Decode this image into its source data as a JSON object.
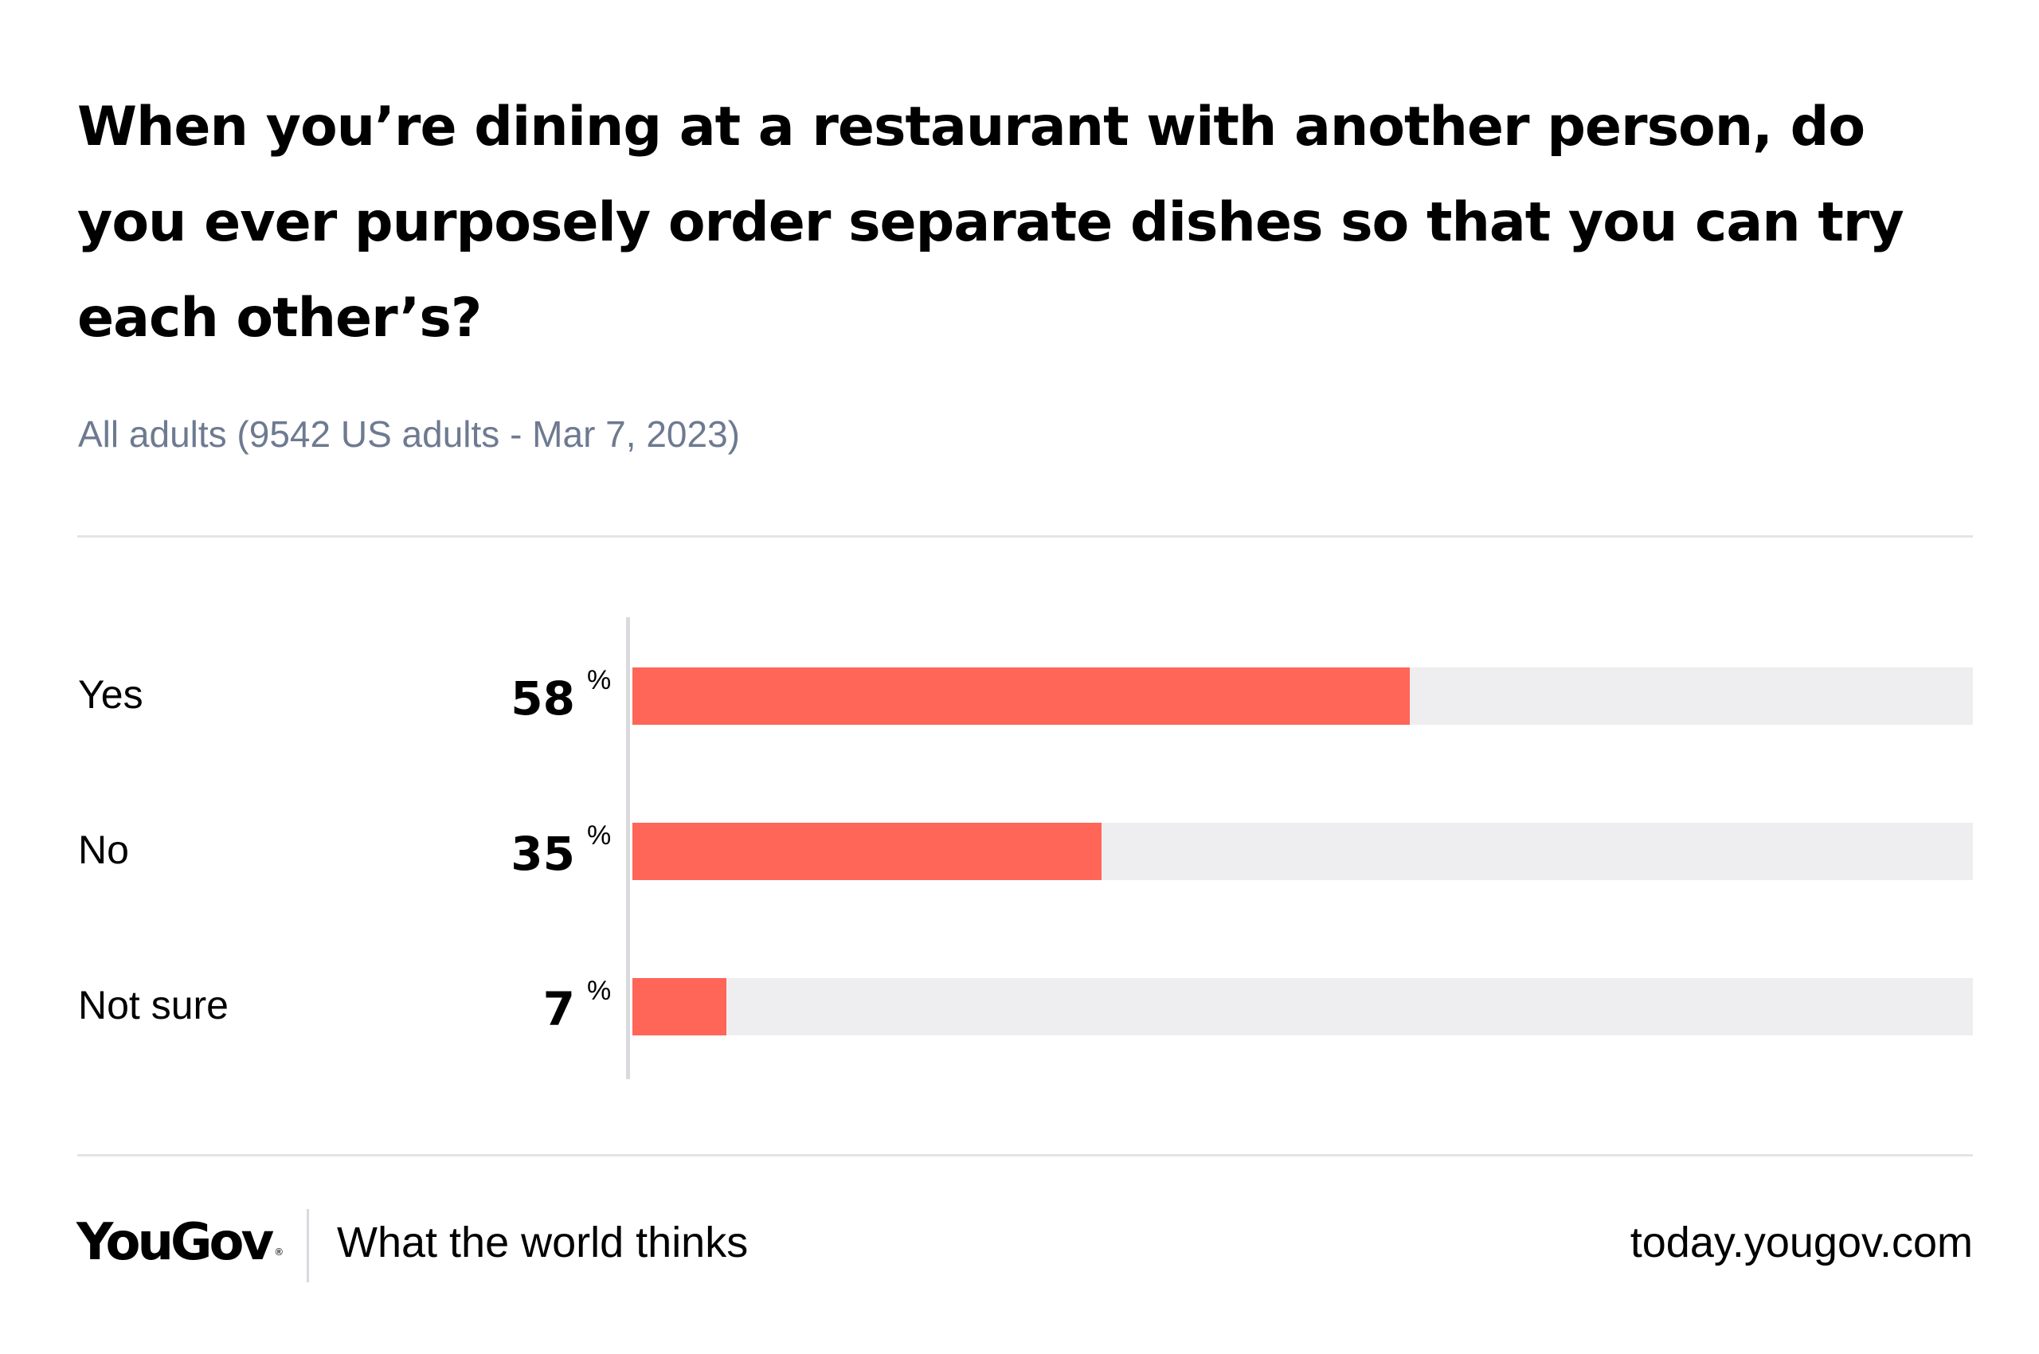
{
  "title": "When you’re dining at a restaurant with another person, do you ever purposely order separate dishes so that you can try each other’s?",
  "subtitle": "All adults (9542 US adults - Mar 7, 2023)",
  "colors": {
    "bar": "#ff6658",
    "track": "#eeeef0",
    "subtitle": "#6e7a91",
    "divider": "#e3e4e7"
  },
  "chart_data": {
    "type": "bar",
    "orientation": "horizontal",
    "categories": [
      "Yes",
      "No",
      "Not sure"
    ],
    "values": [
      58,
      35,
      7
    ],
    "value_suffix": "%",
    "xlim": [
      0,
      100
    ],
    "title": "When you’re dining at a restaurant with another person, do you ever purposely order separate dishes so that you can try each other’s?",
    "xlabel": "",
    "ylabel": "",
    "legend": "none",
    "grid": false
  },
  "footer": {
    "logo": "YouGov",
    "logo_mark": "®",
    "tagline": "What the world thinks",
    "url": "today.yougov.com"
  }
}
